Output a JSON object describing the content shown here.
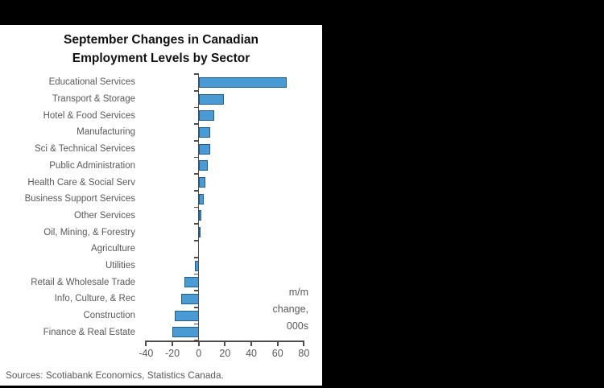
{
  "window": {
    "background_color": "#000000",
    "panel_color": "#ffffff"
  },
  "chart": {
    "title_line1": "September Changes in Canadian",
    "title_line2": "Employment Levels by Sector",
    "annotation_line1": "m/m",
    "annotation_line2": "change,",
    "annotation_line3": "000s",
    "source": "Sources: Scotiabank Economics, Statistics Canada."
  },
  "chart_data": {
    "type": "bar",
    "orientation": "horizontal",
    "title": "September Changes in Canadian Employment Levels by Sector",
    "xlabel": "m/m change, 000s",
    "categories": [
      "Educational Services",
      "Transport & Storage",
      "Hotel & Food Services",
      "Manufacturing",
      "Sci & Technical Services",
      "Public Administration",
      "Health Care & Social Serv",
      "Business Support Services",
      "Other Services",
      "Oil, Mining, & Forestry",
      "Agriculture",
      "Utilities",
      "Retail & Wholesale Trade",
      "Info, Culture, & Rec",
      "Construction",
      "Finance & Real Estate"
    ],
    "values": [
      67,
      19,
      12,
      9,
      8.5,
      7,
      5,
      4,
      2,
      0.5,
      0,
      -3,
      -11,
      -13,
      -18,
      -20
    ],
    "xlim": [
      -40,
      80
    ],
    "xticks": [
      -40,
      -20,
      0,
      20,
      40,
      60,
      80
    ],
    "grid": false,
    "legend": null,
    "bar_fill_color": "#4a9bd4",
    "bar_border_color": "#255c8e",
    "axis_color": "#4d4d4d",
    "label_color": "#595959"
  }
}
